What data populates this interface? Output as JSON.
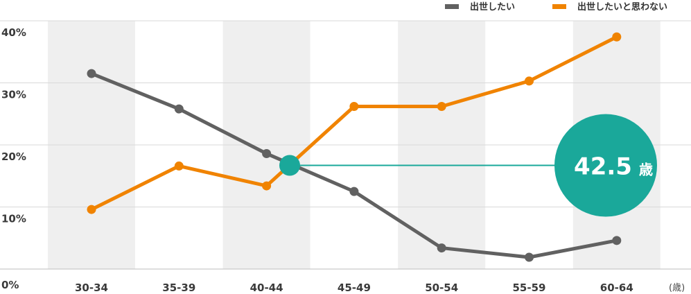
{
  "chart_data": {
    "type": "line",
    "categories": [
      "30-34",
      "35-39",
      "40-44",
      "45-49",
      "50-54",
      "55-59",
      "60-64"
    ],
    "x_unit": "(歳)",
    "yticks": [
      "0%",
      "10%",
      "20%",
      "30%",
      "40%"
    ],
    "ylim": [
      0,
      40
    ],
    "grid": true,
    "legend_position": "top-right",
    "series": [
      {
        "name": "出世したい",
        "color": "#616161",
        "values": [
          31.5,
          25.8,
          18.6,
          12.5,
          3.4,
          1.9,
          4.6
        ]
      },
      {
        "name": "出世したいと思わない",
        "color": "#f08300",
        "values": [
          9.6,
          16.6,
          13.4,
          26.2,
          26.2,
          30.3,
          37.4
        ]
      }
    ],
    "annotation": {
      "value_text": "42.5",
      "unit_text": "歳",
      "crossing_value": 16.7,
      "color": "#1aa89a"
    }
  }
}
